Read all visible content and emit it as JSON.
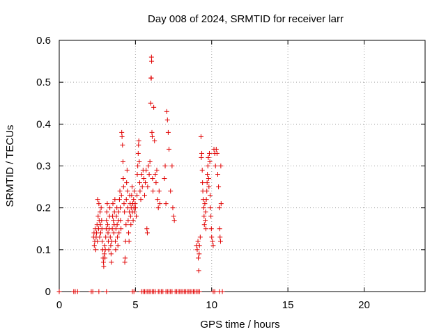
{
  "chart_data": {
    "type": "scatter",
    "title": "Day 008 of 2024, SRMTID for receiver larr",
    "xlabel": "GPS time / hours",
    "ylabel": "SRMTID / TECUs",
    "xlim": [
      0,
      24
    ],
    "ylim": [
      0,
      0.6
    ],
    "xticks": [
      0,
      5,
      10,
      15,
      20
    ],
    "yticks": [
      0,
      0.1,
      0.2,
      0.3,
      0.4,
      0.5,
      0.6
    ],
    "ytick_labels": [
      "0",
      "0.1",
      "0.2",
      "0.3",
      "0.4",
      "0.5",
      "0.6"
    ],
    "xtick_labels": [
      "0",
      "5",
      "10",
      "15",
      "20"
    ],
    "grid": true,
    "marker": "+",
    "color": "#e00000",
    "series": [
      {
        "name": "SRMTID",
        "points": [
          [
            0.0,
            0.0
          ],
          [
            0.95,
            0.0
          ],
          [
            1.05,
            0.0
          ],
          [
            1.2,
            0.0
          ],
          [
            2.1,
            0.0
          ],
          [
            2.2,
            0.0
          ],
          [
            2.6,
            0.0
          ],
          [
            3.1,
            0.0
          ],
          [
            4.8,
            0.0
          ],
          [
            4.9,
            0.0
          ],
          [
            5.4,
            0.0
          ],
          [
            5.5,
            0.0
          ],
          [
            5.6,
            0.0
          ],
          [
            5.7,
            0.0
          ],
          [
            5.8,
            0.0
          ],
          [
            5.9,
            0.0
          ],
          [
            6.0,
            0.0
          ],
          [
            6.1,
            0.0
          ],
          [
            6.2,
            0.0
          ],
          [
            6.3,
            0.0
          ],
          [
            6.5,
            0.0
          ],
          [
            6.6,
            0.0
          ],
          [
            6.7,
            0.0
          ],
          [
            6.8,
            0.0
          ],
          [
            7.0,
            0.0
          ],
          [
            7.1,
            0.0
          ],
          [
            7.2,
            0.0
          ],
          [
            7.3,
            0.0
          ],
          [
            7.4,
            0.0
          ],
          [
            7.6,
            0.0
          ],
          [
            7.7,
            0.0
          ],
          [
            7.8,
            0.0
          ],
          [
            7.9,
            0.0
          ],
          [
            8.0,
            0.0
          ],
          [
            8.1,
            0.0
          ],
          [
            8.2,
            0.0
          ],
          [
            8.3,
            0.0
          ],
          [
            8.4,
            0.0
          ],
          [
            8.5,
            0.0
          ],
          [
            8.6,
            0.0
          ],
          [
            8.7,
            0.0
          ],
          [
            8.8,
            0.0
          ],
          [
            8.9,
            0.0
          ],
          [
            9.0,
            0.0
          ],
          [
            9.1,
            0.0
          ],
          [
            9.2,
            0.0
          ],
          [
            10.1,
            0.0
          ],
          [
            10.2,
            0.0
          ],
          [
            10.5,
            0.0
          ],
          [
            10.7,
            0.0
          ],
          [
            2.25,
            0.13
          ],
          [
            2.28,
            0.14
          ],
          [
            2.3,
            0.11
          ],
          [
            2.33,
            0.12
          ],
          [
            2.36,
            0.15
          ],
          [
            2.4,
            0.1
          ],
          [
            2.42,
            0.13
          ],
          [
            2.45,
            0.14
          ],
          [
            2.48,
            0.16
          ],
          [
            2.5,
            0.12
          ],
          [
            2.52,
            0.22
          ],
          [
            2.55,
            0.18
          ],
          [
            2.58,
            0.15
          ],
          [
            2.6,
            0.21
          ],
          [
            2.62,
            0.17
          ],
          [
            2.65,
            0.13
          ],
          [
            2.68,
            0.19
          ],
          [
            2.7,
            0.16
          ],
          [
            2.72,
            0.14
          ],
          [
            2.75,
            0.2
          ],
          [
            2.78,
            0.17
          ],
          [
            2.8,
            0.15
          ],
          [
            2.82,
            0.12
          ],
          [
            2.85,
            0.1
          ],
          [
            2.88,
            0.08
          ],
          [
            2.9,
            0.07
          ],
          [
            2.92,
            0.06
          ],
          [
            2.95,
            0.09
          ],
          [
            2.98,
            0.11
          ],
          [
            3.0,
            0.08
          ],
          [
            3.02,
            0.1
          ],
          [
            3.05,
            0.13
          ],
          [
            3.08,
            0.15
          ],
          [
            3.1,
            0.17
          ],
          [
            3.12,
            0.19
          ],
          [
            3.15,
            0.21
          ],
          [
            3.18,
            0.16
          ],
          [
            3.2,
            0.14
          ],
          [
            3.22,
            0.12
          ],
          [
            3.25,
            0.1
          ],
          [
            3.28,
            0.15
          ],
          [
            3.3,
            0.18
          ],
          [
            3.32,
            0.2
          ],
          [
            3.35,
            0.13
          ],
          [
            3.38,
            0.11
          ],
          [
            3.4,
            0.09
          ],
          [
            3.42,
            0.07
          ],
          [
            3.45,
            0.12
          ],
          [
            3.48,
            0.15
          ],
          [
            3.5,
            0.18
          ],
          [
            3.52,
            0.21
          ],
          [
            3.55,
            0.17
          ],
          [
            3.58,
            0.14
          ],
          [
            3.6,
            0.16
          ],
          [
            3.62,
            0.19
          ],
          [
            3.65,
            0.22
          ],
          [
            3.68,
            0.12
          ],
          [
            3.7,
            0.1
          ],
          [
            3.72,
            0.15
          ],
          [
            3.75,
            0.18
          ],
          [
            3.78,
            0.2
          ],
          [
            3.8,
            0.16
          ],
          [
            3.82,
            0.13
          ],
          [
            3.85,
            0.11
          ],
          [
            3.88,
            0.17
          ],
          [
            3.9,
            0.19
          ],
          [
            3.92,
            0.14
          ],
          [
            3.95,
            0.22
          ],
          [
            3.98,
            0.24
          ],
          [
            4.0,
            0.2
          ],
          [
            4.02,
            0.17
          ],
          [
            4.05,
            0.15
          ],
          [
            4.08,
            0.23
          ],
          [
            4.1,
            0.38
          ],
          [
            4.12,
            0.37
          ],
          [
            4.15,
            0.35
          ],
          [
            4.18,
            0.31
          ],
          [
            4.2,
            0.27
          ],
          [
            4.22,
            0.25
          ],
          [
            4.25,
            0.21
          ],
          [
            4.28,
            0.19
          ],
          [
            4.3,
            0.07
          ],
          [
            4.32,
            0.08
          ],
          [
            4.35,
            0.12
          ],
          [
            4.38,
            0.16
          ],
          [
            4.4,
            0.22
          ],
          [
            4.42,
            0.26
          ],
          [
            4.45,
            0.29
          ],
          [
            4.48,
            0.24
          ],
          [
            4.5,
            0.2
          ],
          [
            4.52,
            0.17
          ],
          [
            4.55,
            0.14
          ],
          [
            4.58,
            0.12
          ],
          [
            4.6,
            0.19
          ],
          [
            4.62,
            0.23
          ],
          [
            4.65,
            0.21
          ],
          [
            4.68,
            0.18
          ],
          [
            4.7,
            0.16
          ],
          [
            4.72,
            0.2
          ],
          [
            4.75,
            0.23
          ],
          [
            4.78,
            0.25
          ],
          [
            4.8,
            0.19
          ],
          [
            4.82,
            0.21
          ],
          [
            4.85,
            0.17
          ],
          [
            4.88,
            0.22
          ],
          [
            4.9,
            0.2
          ],
          [
            4.92,
            0.24
          ],
          [
            4.95,
            0.19
          ],
          [
            4.98,
            0.21
          ],
          [
            5.0,
            0.2
          ],
          [
            5.05,
            0.18
          ],
          [
            5.1,
            0.23
          ],
          [
            5.12,
            0.28
          ],
          [
            5.15,
            0.3
          ],
          [
            5.18,
            0.33
          ],
          [
            5.2,
            0.35
          ],
          [
            5.22,
            0.36
          ],
          [
            5.25,
            0.31
          ],
          [
            5.28,
            0.26
          ],
          [
            5.3,
            0.24
          ],
          [
            5.35,
            0.22
          ],
          [
            5.4,
            0.28
          ],
          [
            5.45,
            0.25
          ],
          [
            5.5,
            0.29
          ],
          [
            5.55,
            0.27
          ],
          [
            5.6,
            0.23
          ],
          [
            5.65,
            0.26
          ],
          [
            5.7,
            0.29
          ],
          [
            5.75,
            0.15
          ],
          [
            5.78,
            0.14
          ],
          [
            5.8,
            0.25
          ],
          [
            5.85,
            0.3
          ],
          [
            5.9,
            0.28
          ],
          [
            5.95,
            0.31
          ],
          [
            6.0,
            0.45
          ],
          [
            6.02,
            0.51
          ],
          [
            6.04,
            0.51
          ],
          [
            6.05,
            0.56
          ],
          [
            6.06,
            0.55
          ],
          [
            6.08,
            0.38
          ],
          [
            6.1,
            0.37
          ],
          [
            6.12,
            0.27
          ],
          [
            6.15,
            0.24
          ],
          [
            6.2,
            0.44
          ],
          [
            6.25,
            0.36
          ],
          [
            6.3,
            0.28
          ],
          [
            6.35,
            0.26
          ],
          [
            6.4,
            0.29
          ],
          [
            6.45,
            0.22
          ],
          [
            6.5,
            0.2
          ],
          [
            6.55,
            0.24
          ],
          [
            6.6,
            0.21
          ],
          [
            6.9,
            0.27
          ],
          [
            6.95,
            0.3
          ],
          [
            7.0,
            0.21
          ],
          [
            7.05,
            0.43
          ],
          [
            7.1,
            0.41
          ],
          [
            7.15,
            0.38
          ],
          [
            7.2,
            0.34
          ],
          [
            7.3,
            0.24
          ],
          [
            7.4,
            0.3
          ],
          [
            7.45,
            0.2
          ],
          [
            7.5,
            0.18
          ],
          [
            7.55,
            0.17
          ],
          [
            9.0,
            0.11
          ],
          [
            9.05,
            0.1
          ],
          [
            9.1,
            0.12
          ],
          [
            9.12,
            0.08
          ],
          [
            9.15,
            0.05
          ],
          [
            9.18,
            0.09
          ],
          [
            9.2,
            0.11
          ],
          [
            9.25,
            0.13
          ],
          [
            9.3,
            0.37
          ],
          [
            9.32,
            0.32
          ],
          [
            9.35,
            0.33
          ],
          [
            9.38,
            0.29
          ],
          [
            9.4,
            0.26
          ],
          [
            9.42,
            0.24
          ],
          [
            9.45,
            0.22
          ],
          [
            9.48,
            0.2
          ],
          [
            9.5,
            0.18
          ],
          [
            9.52,
            0.16
          ],
          [
            9.55,
            0.21
          ],
          [
            9.58,
            0.17
          ],
          [
            9.6,
            0.19
          ],
          [
            9.62,
            0.15
          ],
          [
            9.65,
            0.22
          ],
          [
            9.68,
            0.24
          ],
          [
            9.7,
            0.26
          ],
          [
            9.72,
            0.28
          ],
          [
            9.75,
            0.3
          ],
          [
            9.78,
            0.32
          ],
          [
            9.8,
            0.27
          ],
          [
            9.82,
            0.25
          ],
          [
            9.85,
            0.33
          ],
          [
            9.88,
            0.31
          ],
          [
            9.9,
            0.23
          ],
          [
            9.92,
            0.2
          ],
          [
            9.95,
            0.18
          ],
          [
            9.98,
            0.15
          ],
          [
            10.0,
            0.13
          ],
          [
            10.05,
            0.12
          ],
          [
            10.1,
            0.11
          ],
          [
            10.15,
            0.34
          ],
          [
            10.2,
            0.33
          ],
          [
            10.25,
            0.3
          ],
          [
            10.3,
            0.34
          ],
          [
            10.35,
            0.33
          ],
          [
            10.4,
            0.28
          ],
          [
            10.45,
            0.25
          ],
          [
            10.5,
            0.2
          ],
          [
            10.52,
            0.15
          ],
          [
            10.55,
            0.13
          ],
          [
            10.58,
            0.12
          ],
          [
            10.6,
            0.3
          ],
          [
            10.62,
            0.21
          ]
        ]
      }
    ]
  }
}
